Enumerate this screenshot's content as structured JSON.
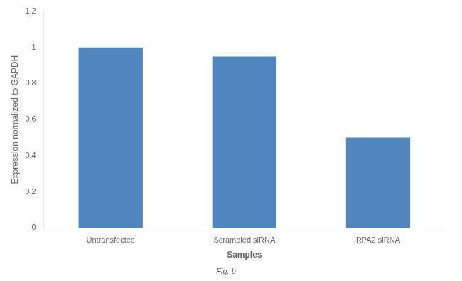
{
  "chart_data": {
    "type": "bar",
    "categories": [
      "Untransfected",
      "Scrambled siRNA",
      "RPA2 siRNA"
    ],
    "values": [
      1,
      0.95,
      0.5
    ],
    "color": "#4f86c0",
    "xlabel": "Samples",
    "ylabel": "Expression normalized to GAPDH",
    "ylim": [
      0,
      1.2
    ],
    "yticks": [
      0,
      0.2,
      0.4,
      0.6,
      0.8,
      1,
      1.2
    ],
    "grid": false,
    "annotations": [
      "Fig. b"
    ]
  }
}
